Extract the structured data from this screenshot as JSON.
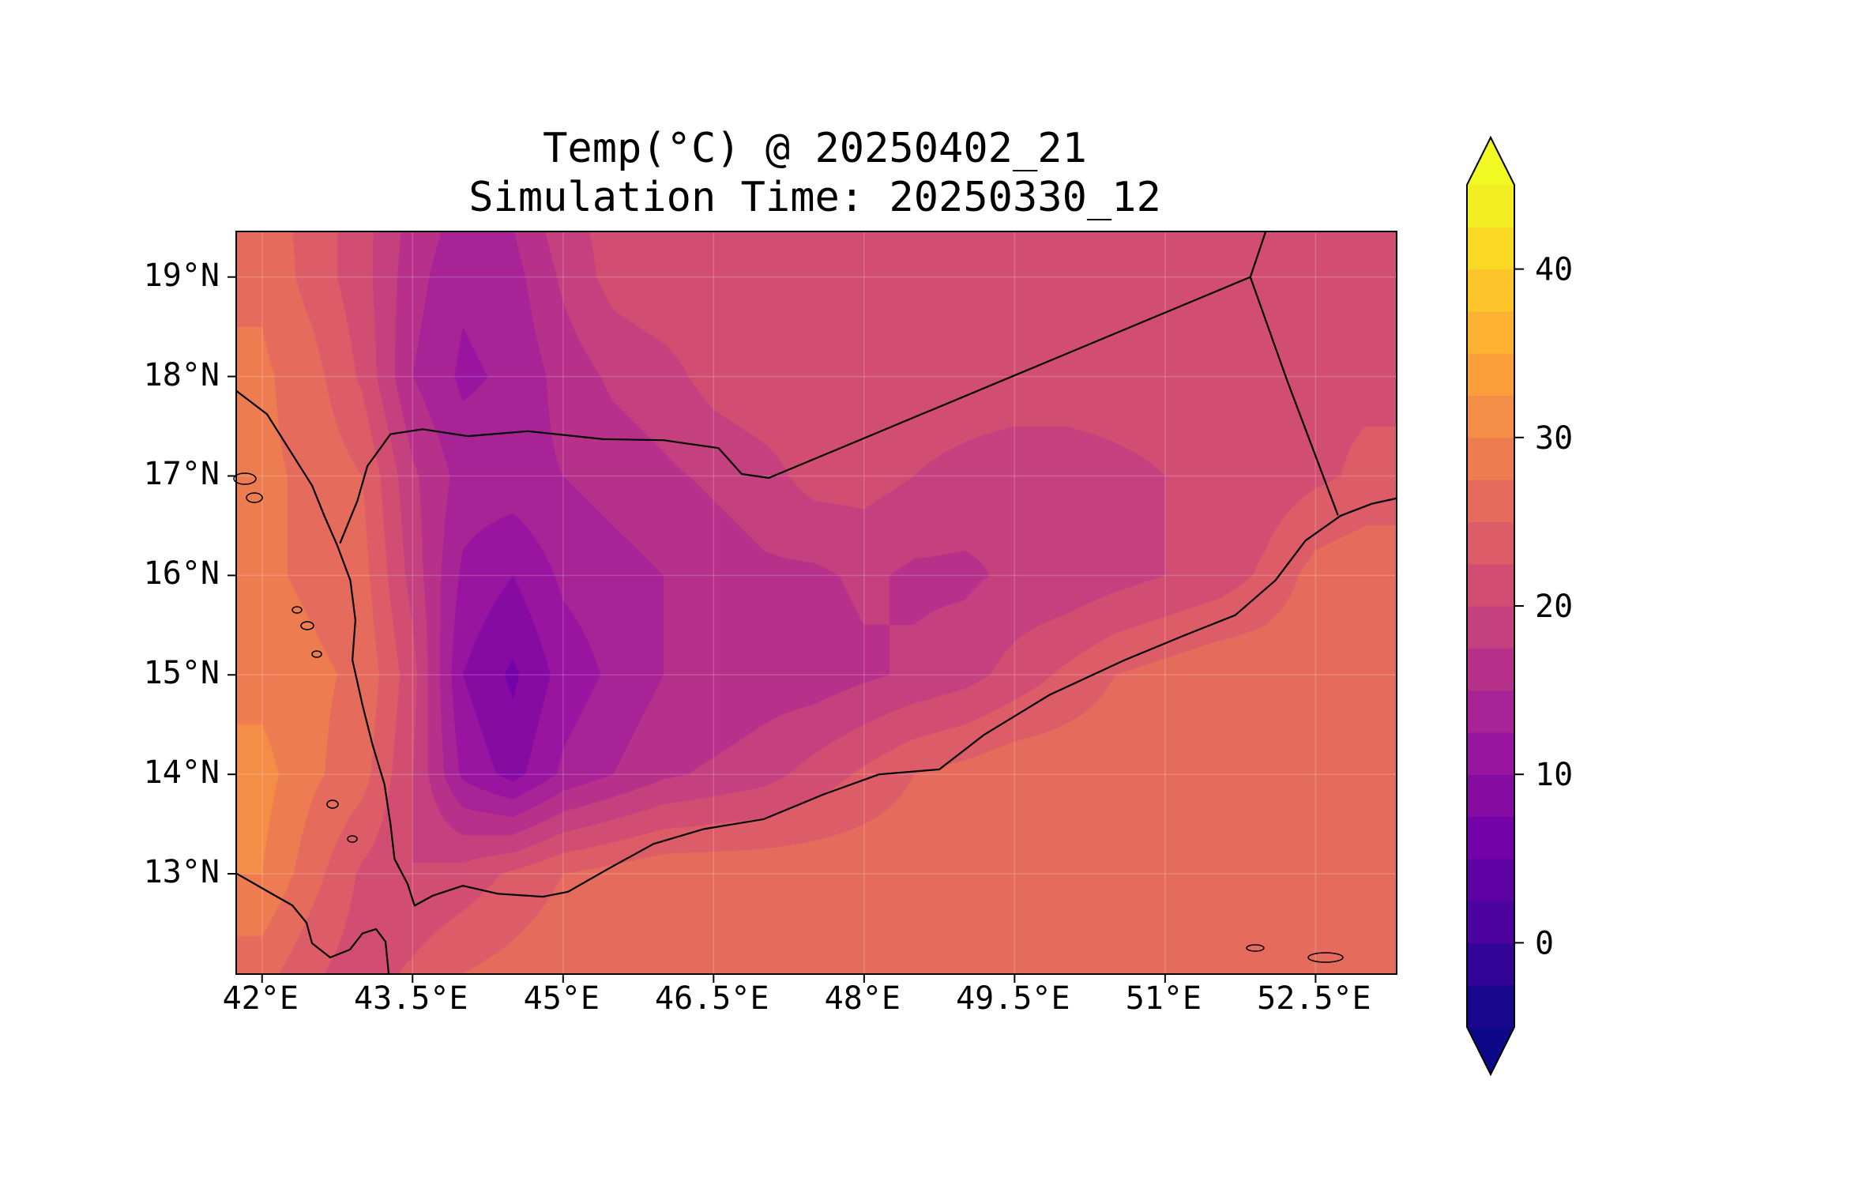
{
  "title": {
    "line1": "Temp(°C) @ 20250402_21",
    "line2": "Simulation Time: 20250330_12"
  },
  "chart_data": {
    "type": "heatmap",
    "title": "Temp(°C) @ 20250402_21",
    "subtitle": "Simulation Time: 20250330_12",
    "variable": "Temp(°C)",
    "valid_time": "20250402_21",
    "simulation_time": "20250330_12",
    "colormap": "plasma",
    "levels_min": -5,
    "levels_max": 45,
    "levels_step": 2.5,
    "colorbar_ticks": [
      40,
      30,
      20,
      10,
      0
    ],
    "colorbar_tick_labels": [
      "40",
      "30",
      "20",
      "10",
      "0"
    ],
    "lon_range": [
      41.75,
      53.3
    ],
    "lat_range": [
      12.0,
      19.45
    ],
    "x_ticks": [
      42,
      43.5,
      45,
      46.5,
      48,
      49.5,
      51,
      52.5
    ],
    "x_tick_labels": [
      "42°E",
      "43.5°E",
      "45°E",
      "46.5°E",
      "48°E",
      "49.5°E",
      "51°E",
      "52.5°E"
    ],
    "y_ticks": [
      19,
      18,
      17,
      16,
      15,
      14,
      13
    ],
    "y_tick_labels": [
      "19°N",
      "18°N",
      "17°N",
      "16°N",
      "15°N",
      "14°N",
      "13°N"
    ],
    "grid_lons": [
      42,
      42.5,
      43,
      43.5,
      44,
      44.5,
      45,
      45.5,
      46,
      46.5,
      47,
      47.5,
      48,
      48.5,
      49,
      49.5,
      50,
      50.5,
      51,
      51.5,
      52,
      52.5,
      53
    ],
    "grid_lats": [
      20,
      19,
      18,
      17,
      16,
      15,
      14,
      13,
      12
    ],
    "temps_c": [
      [
        26,
        24,
        21,
        17,
        15,
        16,
        20,
        21,
        22,
        22,
        22,
        22,
        22,
        22,
        22,
        22,
        22,
        22,
        22,
        22,
        22,
        22,
        22
      ],
      [
        27,
        24,
        21,
        16,
        13,
        14,
        18,
        21,
        22,
        22,
        22,
        22,
        22,
        22,
        22,
        22,
        22,
        22,
        22,
        22,
        22,
        22,
        22
      ],
      [
        28,
        26,
        22,
        15,
        12,
        13,
        16,
        18,
        19,
        21,
        22,
        22,
        22,
        22,
        22,
        22,
        22,
        22,
        22,
        22,
        22,
        22,
        22
      ],
      [
        28,
        27,
        25,
        18,
        14,
        14,
        15,
        16,
        17,
        18,
        19,
        21,
        21,
        20,
        19,
        18,
        18,
        19,
        20,
        21,
        21,
        22,
        23
      ],
      [
        28,
        27,
        26,
        19,
        12,
        10,
        13,
        14,
        15,
        16,
        17,
        17,
        18,
        17,
        17,
        18,
        18,
        19,
        20,
        21,
        23,
        26,
        27
      ],
      [
        29,
        28,
        27,
        21,
        10,
        7,
        11,
        13,
        15,
        15,
        16,
        16,
        17,
        18,
        19,
        21,
        23,
        25,
        26,
        27,
        27,
        27,
        27
      ],
      [
        31,
        28,
        26,
        20,
        12,
        9,
        13,
        15,
        17,
        18,
        19,
        21,
        23,
        25,
        26,
        27,
        27,
        27,
        27,
        27,
        27,
        27,
        27
      ],
      [
        30,
        26,
        22,
        20,
        21,
        23,
        25,
        26,
        27,
        27,
        27,
        27,
        27,
        27,
        27,
        27,
        27,
        27,
        27,
        27,
        27,
        27,
        27
      ],
      [
        26,
        23,
        21,
        23,
        25,
        26,
        27,
        27,
        27,
        27,
        27,
        27,
        27,
        27,
        27,
        27,
        27,
        27,
        27,
        27,
        27,
        27,
        27
      ]
    ]
  }
}
